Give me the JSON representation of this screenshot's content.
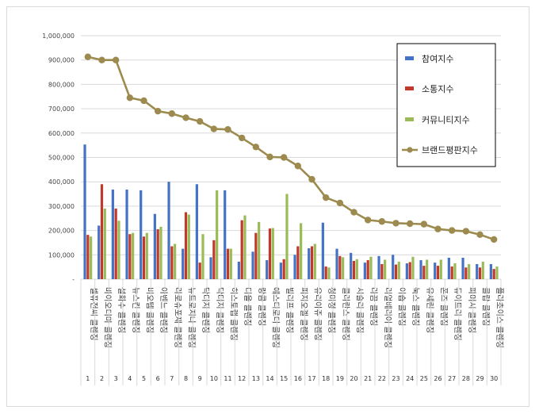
{
  "chart_data": {
    "type": "bar",
    "ylim": [
      0,
      1000000
    ],
    "yticks": [
      "-",
      "100,000",
      "200,000",
      "300,000",
      "400,000",
      "500,000",
      "600,000",
      "700,000",
      "800,000",
      "900,000",
      "1,000,000"
    ],
    "grid": true,
    "legend_position": "right",
    "ranks": [
      "1",
      "2",
      "3",
      "4",
      "5",
      "6",
      "7",
      "8",
      "9",
      "10",
      "11",
      "12",
      "13",
      "14",
      "15",
      "16",
      "17",
      "18",
      "19",
      "20",
      "21",
      "22",
      "23",
      "24",
      "25",
      "26",
      "27",
      "28",
      "29",
      "30"
    ],
    "categories": [
      "셀퓨전씨 클렌징",
      "바이오더마 클렌징",
      "설화수 클렌징",
      "뉴스킨 클렌징",
      "비오템 클렌징",
      "아벤느 클렌징",
      "라로슈포제 클렌징",
      "뉴트로지나 클렌징",
      "닥터지 클렌징",
      "닥터지 클렌징",
      "히스토랩 클렌징",
      "디올 클렌징",
      "랑콤 클렌징",
      "에스티로더 클렌징",
      "빌리프 클렌징",
      "피지오겔 클렌징",
      "유리아쥬 클렌징",
      "청미정 클렌징",
      "클라란스 클렌징",
      "시슬리 클렌징",
      "라끔 클렌징",
      "리얼베리어 클렌징",
      "이솝 클렌징",
      "눅스 클렌징",
      "유세린 클렌징",
      "폰즈 클렌징",
      "듀이트리 클렌징",
      "파머시 클렌징",
      "클랍 클렌징",
      "폴라초이스 클렌징"
    ],
    "series": [
      {
        "name": "참여지수",
        "color": "#4472c4",
        "kind": "bar",
        "values": [
          553000,
          220000,
          368000,
          368000,
          365000,
          268000,
          400000,
          125000,
          390000,
          90000,
          365000,
          72000,
          113000,
          78000,
          68000,
          100000,
          127000,
          232000,
          125000,
          108000,
          68000,
          95000,
          100000,
          65000,
          78000,
          68000,
          88000,
          88000,
          62000,
          62000
        ]
      },
      {
        "name": "소통지수",
        "color": "#c0392b",
        "kind": "bar",
        "values": [
          182000,
          390000,
          290000,
          185000,
          175000,
          205000,
          135000,
          275000,
          68000,
          160000,
          125000,
          242000,
          190000,
          208000,
          82000,
          135000,
          135000,
          52000,
          95000,
          75000,
          78000,
          62000,
          60000,
          70000,
          55000,
          55000,
          52000,
          48000,
          48000,
          42000
        ]
      },
      {
        "name": "커뮤니티지수",
        "color": "#9bbb59",
        "kind": "bar",
        "values": [
          175000,
          290000,
          240000,
          190000,
          190000,
          215000,
          145000,
          265000,
          185000,
          365000,
          125000,
          262000,
          235000,
          210000,
          350000,
          230000,
          145000,
          48000,
          90000,
          82000,
          92000,
          80000,
          72000,
          92000,
          80000,
          80000,
          65000,
          62000,
          72000,
          52000
        ]
      },
      {
        "name": "브랜드평판지수",
        "color": "#9c8a4e",
        "kind": "line",
        "values": [
          913000,
          900000,
          900000,
          745000,
          733000,
          690000,
          680000,
          663000,
          648000,
          617000,
          615000,
          580000,
          543000,
          502000,
          500000,
          465000,
          410000,
          335000,
          313000,
          275000,
          243000,
          237000,
          230000,
          228000,
          226000,
          206000,
          200000,
          197000,
          183000,
          163000
        ]
      }
    ]
  }
}
